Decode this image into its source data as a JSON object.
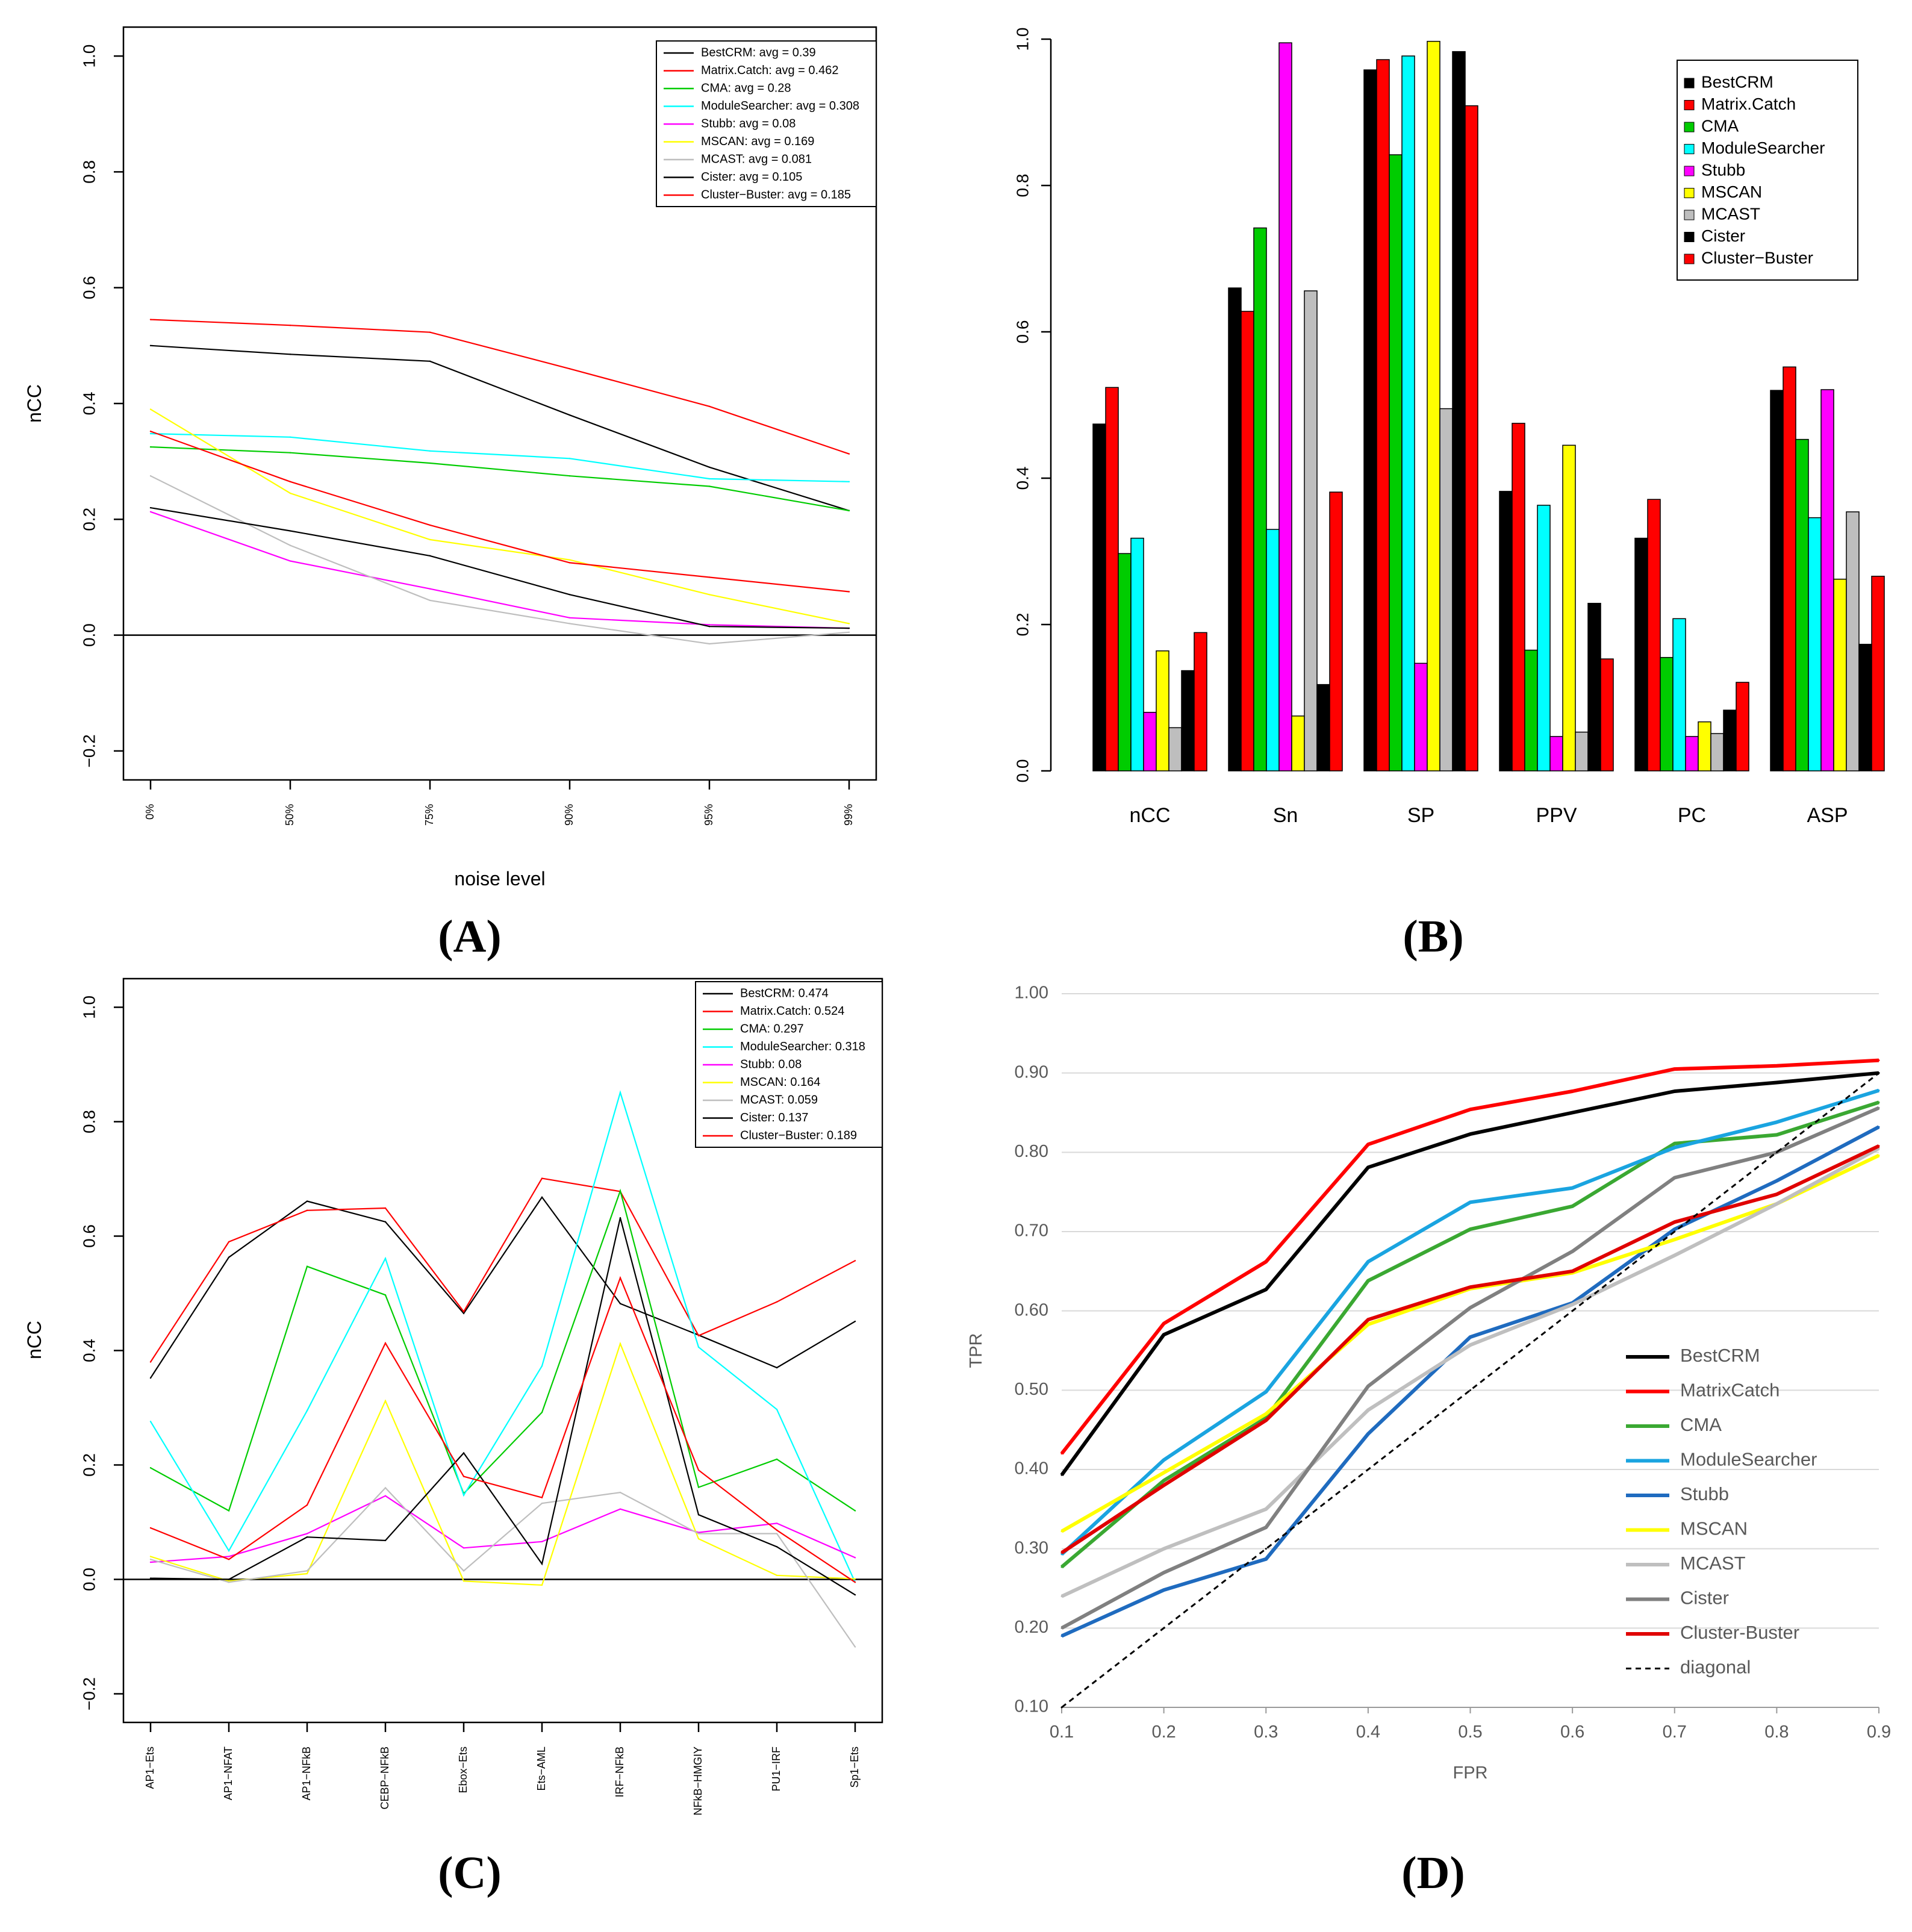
{
  "chart_data": [
    {
      "panel": "A",
      "type": "line",
      "panel_label": "(A)",
      "xlabel": "noise level",
      "ylabel": "nCC",
      "categories": [
        "0%",
        "50%",
        "75%",
        "90%",
        "95%",
        "99%"
      ],
      "ylim": [
        -0.25,
        1.05
      ],
      "yticks": [
        -0.2,
        0.0,
        0.2,
        0.4,
        0.6,
        0.8,
        1.0
      ],
      "yticklabels": [
        "−0.2",
        "0.0",
        "0.2",
        "0.4",
        "0.6",
        "0.8",
        "1.0"
      ],
      "zero_line": true,
      "legend_position": "top-right",
      "series": [
        {
          "name": "BestCRM",
          "legend": "BestCRM: avg = 0.39",
          "color": "#000000",
          "values": [
            0.5,
            0.485,
            0.473,
            0.38,
            0.29,
            0.215
          ]
        },
        {
          "name": "Matrix.Catch",
          "legend": "Matrix.Catch: avg = 0.462",
          "color": "#ff0000",
          "values": [
            0.545,
            0.535,
            0.523,
            0.46,
            0.395,
            0.313
          ]
        },
        {
          "name": "CMA",
          "legend": "CMA: avg = 0.28",
          "color": "#00cc00",
          "values": [
            0.325,
            0.315,
            0.297,
            0.275,
            0.257,
            0.215
          ]
        },
        {
          "name": "ModuleSearcher",
          "legend": "ModuleSearcher: avg = 0.308",
          "color": "#00ffff",
          "values": [
            0.348,
            0.342,
            0.318,
            0.305,
            0.27,
            0.265
          ]
        },
        {
          "name": "Stubb",
          "legend": "Stubb: avg = 0.08",
          "color": "#ff00ff",
          "values": [
            0.213,
            0.128,
            0.08,
            0.03,
            0.018,
            0.012
          ]
        },
        {
          "name": "MSCAN",
          "legend": "MSCAN: avg = 0.169",
          "color": "#ffff00",
          "values": [
            0.39,
            0.245,
            0.165,
            0.13,
            0.07,
            0.02
          ]
        },
        {
          "name": "MCAST",
          "legend": "MCAST: avg = 0.081",
          "color": "#bebebe",
          "values": [
            0.275,
            0.155,
            0.06,
            0.02,
            -0.015,
            0.005
          ]
        },
        {
          "name": "Cister",
          "legend": "Cister: avg = 0.105",
          "color": "#000000",
          "values": [
            0.22,
            0.18,
            0.137,
            0.07,
            0.015,
            0.012
          ]
        },
        {
          "name": "Cluster-Buster",
          "legend": "Cluster−Buster: avg = 0.185",
          "color": "#ff0000",
          "values": [
            0.352,
            0.265,
            0.19,
            0.125,
            0.1,
            0.075
          ]
        }
      ]
    },
    {
      "panel": "B",
      "type": "bar",
      "panel_label": "(B)",
      "categories": [
        "nCC",
        "Sn",
        "SP",
        "PPV",
        "PC",
        "ASP"
      ],
      "ylim": [
        0,
        1.0
      ],
      "yticks": [
        0.0,
        0.2,
        0.4,
        0.6,
        0.8,
        1.0
      ],
      "yticklabels": [
        "0.0",
        "0.2",
        "0.4",
        "0.6",
        "0.8",
        "1.0"
      ],
      "legend_position": "top-right",
      "series": [
        {
          "name": "BestCRM",
          "color": "#000000",
          "values": [
            0.474,
            0.66,
            0.958,
            0.382,
            0.318,
            0.52
          ]
        },
        {
          "name": "Matrix.Catch",
          "color": "#ff0000",
          "values": [
            0.524,
            0.628,
            0.972,
            0.475,
            0.371,
            0.552
          ]
        },
        {
          "name": "CMA",
          "color": "#00cc00",
          "values": [
            0.297,
            0.742,
            0.842,
            0.165,
            0.155,
            0.453
          ]
        },
        {
          "name": "ModuleSearcher",
          "color": "#00ffff",
          "values": [
            0.318,
            0.33,
            0.977,
            0.363,
            0.208,
            0.346
          ]
        },
        {
          "name": "Stubb",
          "color": "#ff00ff",
          "values": [
            0.08,
            0.995,
            0.147,
            0.047,
            0.047,
            0.521
          ]
        },
        {
          "name": "MSCAN",
          "color": "#ffff00",
          "values": [
            0.164,
            0.075,
            0.997,
            0.445,
            0.067,
            0.262
          ]
        },
        {
          "name": "MCAST",
          "color": "#bebebe",
          "values": [
            0.059,
            0.656,
            0.495,
            0.053,
            0.051,
            0.354
          ]
        },
        {
          "name": "Cister",
          "color": "#000000",
          "values": [
            0.137,
            0.118,
            0.983,
            0.229,
            0.083,
            0.173
          ]
        },
        {
          "name": "Cluster−Buster",
          "color": "#ff0000",
          "values": [
            0.189,
            0.381,
            0.909,
            0.153,
            0.121,
            0.266
          ]
        }
      ]
    },
    {
      "panel": "C",
      "type": "line",
      "panel_label": "(C)",
      "xlabel": "",
      "ylabel": "nCC",
      "categories": [
        "AP1−Ets",
        "AP1−NFAT",
        "AP1−NFkB",
        "CEBP−NFkB",
        "Ebox−Ets",
        "Ets−AML",
        "IRF−NFkB",
        "NFkB−HMGIY",
        "PU1−IRF",
        "Sp1−Ets"
      ],
      "ylim": [
        -0.25,
        1.05
      ],
      "yticks": [
        -0.2,
        0.0,
        0.2,
        0.4,
        0.6,
        0.8,
        1.0
      ],
      "yticklabels": [
        "−0.2",
        "0.0",
        "0.2",
        "0.4",
        "0.6",
        "0.8",
        "1.0"
      ],
      "zero_line": true,
      "legend_position": "top-right",
      "series": [
        {
          "name": "BestCRM",
          "legend": "BestCRM: 0.474",
          "color": "#000000",
          "values": [
            0.352,
            0.563,
            0.661,
            0.625,
            0.465,
            0.668,
            0.482,
            0.427,
            0.37,
            0.451
          ]
        },
        {
          "name": "Matrix.Catch",
          "legend": "Matrix.Catch: 0.524",
          "color": "#ff0000",
          "values": [
            0.38,
            0.59,
            0.645,
            0.649,
            0.468,
            0.701,
            0.678,
            0.426,
            0.485,
            0.557
          ]
        },
        {
          "name": "CMA",
          "legend": "CMA: 0.297",
          "color": "#00cc00",
          "values": [
            0.195,
            0.12,
            0.547,
            0.497,
            0.15,
            0.292,
            0.679,
            0.161,
            0.21,
            0.12
          ]
        },
        {
          "name": "ModuleSearcher",
          "legend": "ModuleSearcher: 0.318",
          "color": "#00ffff",
          "values": [
            0.276,
            0.05,
            0.295,
            0.561,
            0.147,
            0.373,
            0.851,
            0.406,
            0.297,
            -0.005
          ]
        },
        {
          "name": "Stubb",
          "legend": "Stubb: 0.08",
          "color": "#ff00ff",
          "values": [
            0.03,
            0.04,
            0.08,
            0.146,
            0.055,
            0.066,
            0.123,
            0.082,
            0.098,
            0.038
          ]
        },
        {
          "name": "MSCAN",
          "legend": "MSCAN: 0.164",
          "color": "#ffff00",
          "values": [
            0.04,
            -0.003,
            0.01,
            0.312,
            -0.003,
            -0.01,
            0.412,
            0.071,
            0.007,
            0.001
          ]
        },
        {
          "name": "MCAST",
          "legend": "MCAST: 0.059",
          "color": "#bebebe",
          "values": [
            0.035,
            -0.005,
            0.015,
            0.16,
            0.015,
            0.133,
            0.152,
            0.08,
            0.08,
            -0.118
          ]
        },
        {
          "name": "Cister",
          "legend": "Cister: 0.137",
          "color": "#000000",
          "values": [
            0.002,
            0.0,
            0.074,
            0.068,
            0.221,
            0.027,
            0.632,
            0.113,
            0.057,
            -0.027
          ]
        },
        {
          "name": "Cluster-Buster",
          "legend": "Cluster−Buster: 0.189",
          "color": "#ff0000",
          "values": [
            0.09,
            0.035,
            0.13,
            0.413,
            0.18,
            0.143,
            0.527,
            0.191,
            0.086,
            -0.005
          ]
        }
      ]
    },
    {
      "panel": "D",
      "type": "line",
      "panel_label": "(D)",
      "xlabel": "FPR",
      "ylabel": "TPR",
      "x": [
        0.1,
        0.2,
        0.3,
        0.4,
        0.5,
        0.6,
        0.7,
        0.8,
        0.9
      ],
      "xticklabels": [
        "0.1",
        "0.2",
        "0.3",
        "0.4",
        "0.5",
        "0.6",
        "0.7",
        "0.8",
        "0.9"
      ],
      "xlim": [
        0.1,
        0.9
      ],
      "ylim": [
        0.1,
        1.0
      ],
      "yticks": [
        0.1,
        0.2,
        0.3,
        0.4,
        0.5,
        0.6,
        0.7,
        0.8,
        0.9,
        1.0
      ],
      "yticklabels": [
        "0.10",
        "0.20",
        "0.30",
        "0.40",
        "0.50",
        "0.60",
        "0.70",
        "0.80",
        "0.90",
        "1.00"
      ],
      "grid": true,
      "legend_position": "bottom-right",
      "series": [
        {
          "name": "BestCRM",
          "color": "#000000",
          "values": [
            0.393,
            0.57,
            0.627,
            0.781,
            0.823,
            0.85,
            0.877,
            0.888,
            0.9
          ]
        },
        {
          "name": "MatrixCatch",
          "color": "#ff0000",
          "values": [
            0.42,
            0.584,
            0.662,
            0.81,
            0.854,
            0.877,
            0.905,
            0.909,
            0.916
          ]
        },
        {
          "name": "CMA",
          "color": "#3aa832",
          "values": [
            0.277,
            0.386,
            0.465,
            0.638,
            0.703,
            0.732,
            0.811,
            0.822,
            0.863
          ]
        },
        {
          "name": "ModuleSearcher",
          "color": "#1aa4e0",
          "values": [
            0.293,
            0.412,
            0.498,
            0.662,
            0.737,
            0.755,
            0.806,
            0.838,
            0.878
          ]
        },
        {
          "name": "Stubb",
          "color": "#1f6bbf",
          "values": [
            0.19,
            0.248,
            0.287,
            0.445,
            0.567,
            0.61,
            0.703,
            0.764,
            0.832
          ]
        },
        {
          "name": "MSCAN",
          "color": "#ffff00",
          "values": [
            0.322,
            0.396,
            0.47,
            0.583,
            0.628,
            0.648,
            0.69,
            0.735,
            0.796
          ]
        },
        {
          "name": "MCAST",
          "color": "#bfbfbf",
          "values": [
            0.24,
            0.3,
            0.35,
            0.475,
            0.557,
            0.608,
            0.67,
            0.735,
            0.805
          ]
        },
        {
          "name": "Cister",
          "color": "#808080",
          "values": [
            0.2,
            0.27,
            0.327,
            0.505,
            0.604,
            0.675,
            0.768,
            0.8,
            0.856
          ]
        },
        {
          "name": "Cluster-Buster",
          "color": "#e00000",
          "values": [
            0.295,
            0.38,
            0.462,
            0.589,
            0.63,
            0.65,
            0.712,
            0.747,
            0.808
          ]
        },
        {
          "name": "diagonal",
          "color": "#000000",
          "dashed": true,
          "values": [
            0.1,
            0.2,
            0.3,
            0.4,
            0.5,
            0.6,
            0.7,
            0.8,
            0.9
          ]
        }
      ]
    }
  ]
}
